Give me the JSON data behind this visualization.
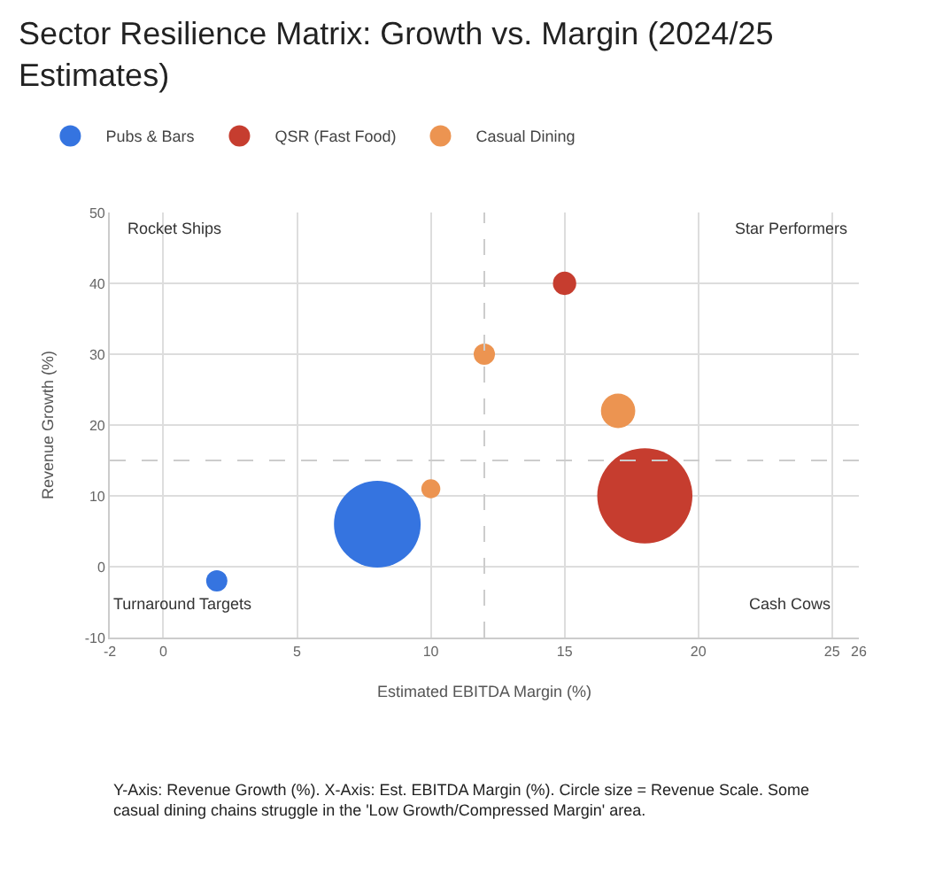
{
  "chart_data": {
    "type": "bubble",
    "title": "Sector Resilience Matrix: Growth vs. Margin (2024/25 Estimates)",
    "xlabel": "Estimated EBITDA Margin (%)",
    "ylabel": "Revenue Growth (%)",
    "series": [
      {
        "name": "Pubs & Bars",
        "color": "#3574e0",
        "x": [
          2,
          8
        ],
        "values": [
          -2,
          6
        ],
        "sizes": [
          0.05,
          0.83
        ]
      },
      {
        "name": "QSR (Fast Food)",
        "color": "#c63d2f",
        "x": [
          15,
          18
        ],
        "values": [
          40,
          10
        ],
        "sizes": [
          0.06,
          1
        ]
      },
      {
        "name": "Casual Dining",
        "color": "#ec9451",
        "x": [
          12,
          10,
          17
        ],
        "values": [
          30,
          11,
          22
        ],
        "sizes": [
          0.05,
          0.04,
          0.13
        ]
      }
    ],
    "xlim": [
      -2,
      26
    ],
    "xticks": [
      -2,
      0,
      5,
      10,
      15,
      20,
      25,
      26
    ],
    "ylim": [
      -10,
      50
    ],
    "yticks": [
      -10,
      0,
      10,
      20,
      30,
      40,
      50
    ],
    "ref_lines": [
      {
        "axis": "x",
        "value": 12,
        "line_style": "dashed"
      },
      {
        "axis": "y",
        "value": 15,
        "line_style": "dashed"
      }
    ],
    "annotations": [
      "Rocket Ships",
      "Star Performers",
      "Turnaround Targets",
      "Cash Cows",
      "Y-Axis: Revenue Growth (%). X-Axis: Est. EBITDA Margin (%). Circle size = Revenue Scale. Some casual dining chains struggle in the 'Low Growth/Compressed Margin' area."
    ],
    "grid": true,
    "legend": "top left"
  }
}
